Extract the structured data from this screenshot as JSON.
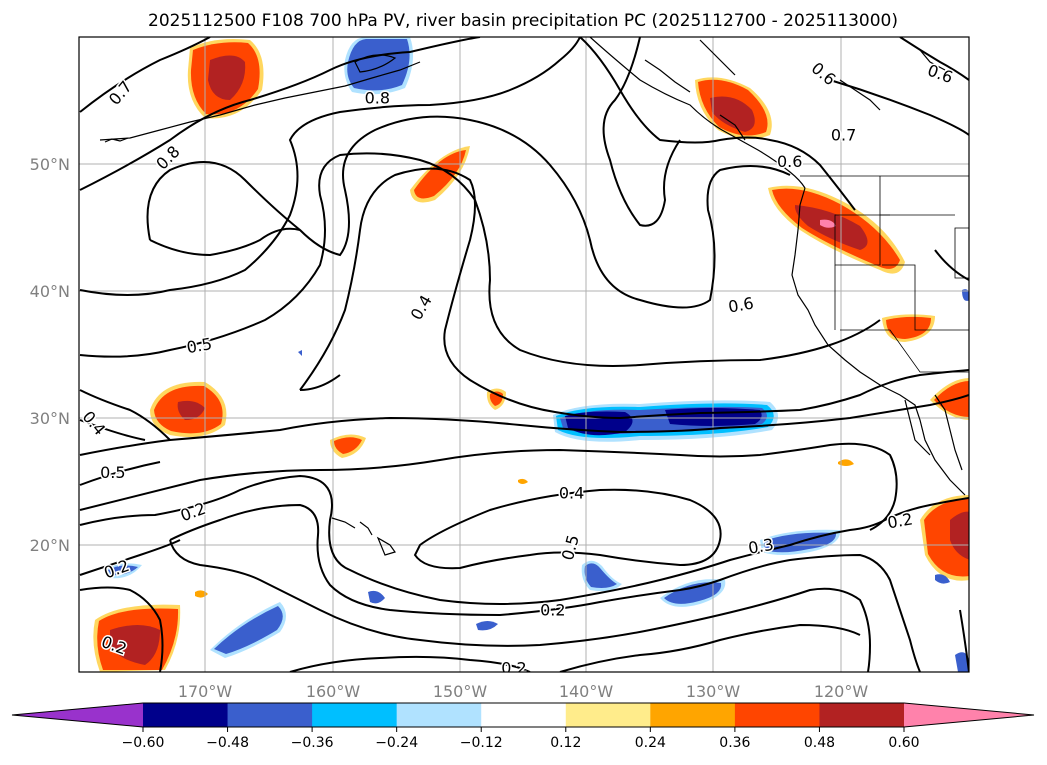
{
  "title": "2025112500 F108 700 hPa PV, river basin precipitation PC (2025112700 - 2025113000)",
  "map": {
    "lon_range": [
      -179,
      -108
    ],
    "lat_range": [
      10,
      60
    ],
    "lon_ticks": [
      {
        "lon": -170,
        "label": "170°W"
      },
      {
        "lon": -160,
        "label": "160°W"
      },
      {
        "lon": -150,
        "label": "150°W"
      },
      {
        "lon": -140,
        "label": "140°W"
      },
      {
        "lon": -130,
        "label": "130°W"
      },
      {
        "lon": -120,
        "label": "120°W"
      }
    ],
    "lat_ticks": [
      {
        "lat": 20,
        "label": "20°N"
      },
      {
        "lat": 30,
        "label": "30°N"
      },
      {
        "lat": 40,
        "label": "40°N"
      },
      {
        "lat": 50,
        "label": "50°N"
      }
    ],
    "grid": true
  },
  "pv_contour_labels": [
    {
      "text": "0.7",
      "lon": -175.7,
      "lat": 55.6,
      "rot": -50
    },
    {
      "text": "0.8",
      "lon": -171.9,
      "lat": 50.5,
      "rot": -45
    },
    {
      "text": "0.8",
      "lon": -155.2,
      "lat": 55.2,
      "rot": 0
    },
    {
      "text": "0.6",
      "lon": -119.6,
      "lat": 57.1,
      "rot": 40
    },
    {
      "text": "0.6",
      "lon": -110.3,
      "lat": 57.1,
      "rot": 20
    },
    {
      "text": "0.7",
      "lon": -118.0,
      "lat": 52.3,
      "rot": 0
    },
    {
      "text": "0.6",
      "lon": -122.3,
      "lat": 50.2,
      "rot": 0
    },
    {
      "text": "0.6",
      "lon": -126.2,
      "lat": 38.9,
      "rot": -10
    },
    {
      "text": "0.4",
      "lon": -151.7,
      "lat": 38.7,
      "rot": -60
    },
    {
      "text": "0.5",
      "lon": -169.4,
      "lat": 35.7,
      "rot": -10
    },
    {
      "text": "0.4",
      "lon": -177.8,
      "lat": 29.6,
      "rot": 50
    },
    {
      "text": "0.5",
      "lon": -176.3,
      "lat": 25.7,
      "rot": 0
    },
    {
      "text": "0.2",
      "lon": -169.9,
      "lat": 22.6,
      "rot": -20
    },
    {
      "text": "0.2",
      "lon": -176.0,
      "lat": 18.1,
      "rot": -20
    },
    {
      "text": "0.2",
      "lon": -176.2,
      "lat": 12.1,
      "rot": 20
    },
    {
      "text": "0.4",
      "lon": -139.7,
      "lat": 24.1,
      "rot": 0
    },
    {
      "text": "0.5",
      "lon": -139.8,
      "lat": 19.8,
      "rot": -75
    },
    {
      "text": "0.3",
      "lon": -124.6,
      "lat": 19.9,
      "rot": -10
    },
    {
      "text": "0.2",
      "lon": -113.5,
      "lat": 21.9,
      "rot": -10
    },
    {
      "text": "0.2",
      "lon": -141.2,
      "lat": 14.9,
      "rot": 0
    },
    {
      "text": "0.2",
      "lon": -144.3,
      "lat": 10.3,
      "rot": 0
    }
  ],
  "colorbar": {
    "ticks": [
      "−0.60",
      "−0.48",
      "−0.36",
      "−0.24",
      "−0.12",
      "0.12",
      "0.24",
      "0.36",
      "0.48",
      "0.60"
    ],
    "under_color": "#9932cc",
    "over_color": "#ff82ab",
    "bin_colors": [
      "#00008b",
      "#3a5fcd",
      "#00bfff",
      "#b0e2ff",
      "#ffffff",
      "#ffec8b",
      "#ffa500",
      "#ff4500",
      "#b22222"
    ]
  }
}
